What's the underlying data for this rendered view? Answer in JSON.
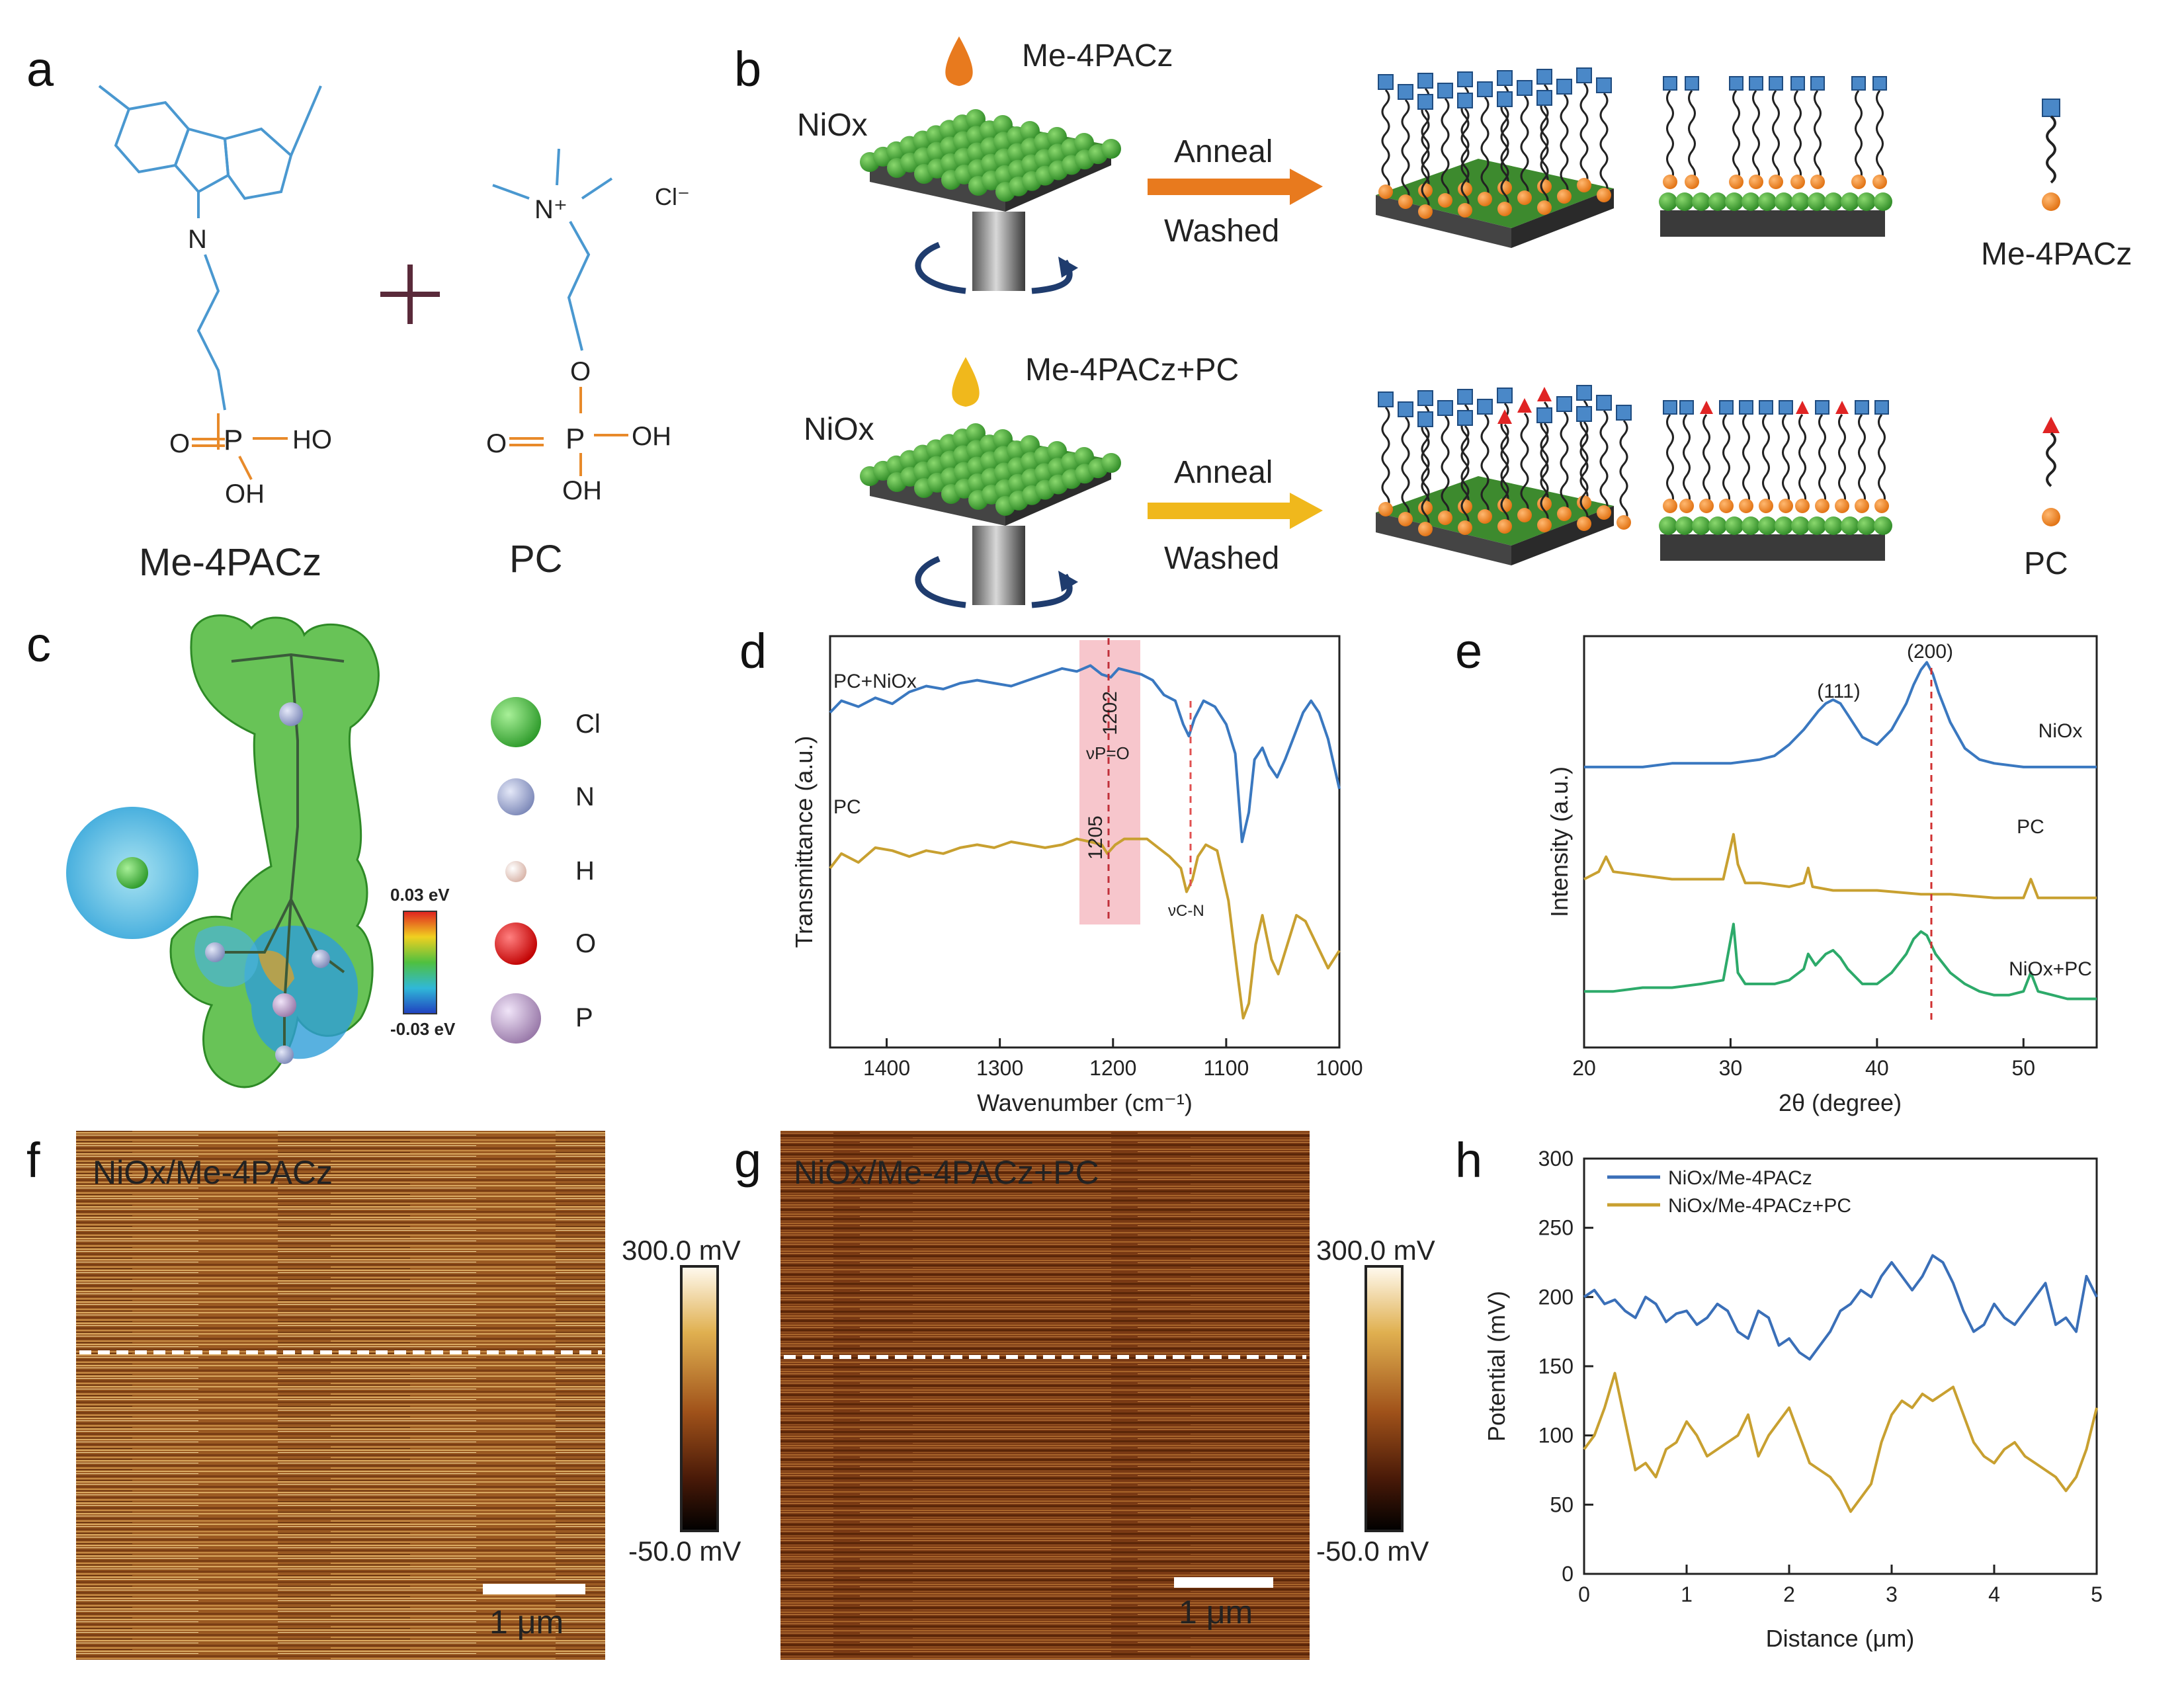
{
  "panels": {
    "a": {
      "label": "a",
      "molecule1_name": "Me-4PACz",
      "molecule2_name": "PC",
      "atoms": {
        "N": "N",
        "N_plus": "N⁺",
        "cl_minus": "Cl⁻",
        "O": "O",
        "HO": "HO",
        "OH1": "OH",
        "OH2": "OH",
        "O_dbl": "O",
        "P": "P"
      }
    },
    "b": {
      "label": "b",
      "top_drop_label": "Me-4PACz",
      "top_substrate_label": "NiOx",
      "top_arrow_top": "Anneal",
      "top_arrow_bottom": "Washed",
      "top_legend": "Me-4PACz",
      "bottom_drop_label": "Me-4PACz+PC",
      "bottom_substrate_label": "NiOx",
      "bottom_arrow_top": "Anneal",
      "bottom_arrow_bottom": "Washed",
      "bottom_legend": "PC",
      "colors": {
        "orange_drop": "#e87a1e",
        "yellow_drop": "#f0b81c",
        "head_blue": "#4a88c8",
        "green_np": "#4fae3c",
        "pc_red": "#e02424"
      }
    },
    "c": {
      "label": "c",
      "legend": [
        "Cl",
        "N",
        "H",
        "O",
        "P"
      ],
      "legend_colors": [
        "#3fb13c",
        "#9aa6c9",
        "#f2d8cf",
        "#e01e1e",
        "#b59ac2"
      ],
      "scale_max": "0.03 eV",
      "scale_min": "-0.03 eV"
    },
    "f": {
      "label": "f",
      "title": "NiOx/Me-4PACz",
      "scale_max": "300.0 mV",
      "scale_min": "-50.0 mV",
      "scalebar": "1 μm"
    },
    "g": {
      "label": "g",
      "title": "NiOx/Me-4PACz+PC",
      "scale_max": "300.0 mV",
      "scale_min": "-50.0 mV",
      "scalebar": "1 μm"
    }
  },
  "chart_data": [
    {
      "panel": "d",
      "label": "d",
      "type": "line",
      "xlabel": "Wavenumber (cm⁻¹)",
      "ylabel": "Transmittance (a.u.)",
      "xlim": [
        1450,
        1000
      ],
      "xticks": [
        1400,
        1300,
        1200,
        1100,
        1000
      ],
      "grid": false,
      "annotations": [
        "1202",
        "1205",
        "νP=O",
        "νC-N"
      ],
      "series": [
        {
          "name": "PC+NiOx",
          "color": "#3a78c0",
          "x": [
            1450,
            1440,
            1425,
            1410,
            1395,
            1380,
            1365,
            1350,
            1335,
            1320,
            1305,
            1290,
            1275,
            1260,
            1245,
            1232,
            1220,
            1210,
            1202,
            1195,
            1185,
            1175,
            1165,
            1155,
            1145,
            1138,
            1133,
            1128,
            1120,
            1110,
            1100,
            1092,
            1086,
            1080,
            1075,
            1068,
            1062,
            1055,
            1048,
            1040,
            1032,
            1025,
            1018,
            1010,
            1000
          ],
          "y": [
            0.84,
            0.88,
            0.86,
            0.89,
            0.87,
            0.91,
            0.93,
            0.92,
            0.94,
            0.95,
            0.94,
            0.93,
            0.95,
            0.97,
            0.99,
            0.98,
            1.0,
            0.97,
            0.96,
            0.99,
            0.98,
            0.97,
            0.95,
            0.9,
            0.88,
            0.8,
            0.76,
            0.82,
            0.88,
            0.86,
            0.8,
            0.7,
            0.4,
            0.5,
            0.68,
            0.72,
            0.66,
            0.62,
            0.68,
            0.76,
            0.84,
            0.88,
            0.84,
            0.75,
            0.58
          ]
        },
        {
          "name": "PC",
          "color": "#c8a030",
          "x": [
            1450,
            1440,
            1425,
            1410,
            1395,
            1380,
            1365,
            1350,
            1335,
            1320,
            1305,
            1290,
            1275,
            1260,
            1245,
            1232,
            1220,
            1210,
            1205,
            1198,
            1190,
            1180,
            1170,
            1160,
            1150,
            1140,
            1135,
            1130,
            1125,
            1118,
            1108,
            1098,
            1090,
            1085,
            1080,
            1074,
            1068,
            1060,
            1054,
            1046,
            1038,
            1030,
            1020,
            1010,
            1000
          ],
          "y": [
            0.56,
            0.61,
            0.58,
            0.63,
            0.62,
            0.6,
            0.62,
            0.61,
            0.63,
            0.64,
            0.63,
            0.65,
            0.64,
            0.63,
            0.64,
            0.66,
            0.65,
            0.64,
            0.61,
            0.64,
            0.66,
            0.66,
            0.66,
            0.63,
            0.6,
            0.56,
            0.48,
            0.52,
            0.6,
            0.64,
            0.62,
            0.45,
            0.2,
            0.05,
            0.1,
            0.3,
            0.4,
            0.25,
            0.2,
            0.3,
            0.4,
            0.38,
            0.3,
            0.22,
            0.28
          ]
        }
      ]
    },
    {
      "panel": "e",
      "label": "e",
      "type": "line",
      "xlabel": "2θ (degree)",
      "ylabel": "Intensity (a.u.)",
      "xlim": [
        20,
        55
      ],
      "xticks": [
        20,
        30,
        40,
        50
      ],
      "grid": false,
      "annotations": [
        "(111)",
        "(200)"
      ],
      "series": [
        {
          "name": "NiOx",
          "color": "#3a78c0",
          "x": [
            20,
            22,
            24,
            26,
            28,
            30,
            32,
            33,
            34,
            35,
            36,
            36.5,
            37,
            37.5,
            38,
            39,
            40,
            41,
            42,
            42.5,
            43,
            43.4,
            43.8,
            44.2,
            45,
            46,
            47,
            48,
            50,
            52,
            55
          ],
          "y": [
            0.8,
            0.8,
            0.8,
            0.81,
            0.81,
            0.81,
            0.82,
            0.83,
            0.86,
            0.9,
            0.95,
            0.97,
            0.98,
            0.97,
            0.94,
            0.88,
            0.86,
            0.9,
            0.97,
            1.02,
            1.06,
            1.08,
            1.05,
            1.0,
            0.92,
            0.85,
            0.82,
            0.81,
            0.8,
            0.8,
            0.8
          ]
        },
        {
          "name": "PC",
          "color": "#c8a030",
          "x": [
            20,
            21,
            21.5,
            22,
            24,
            26,
            28,
            29.5,
            30.2,
            30.5,
            31,
            32,
            34,
            35,
            35.3,
            35.6,
            37,
            40,
            43,
            45,
            48,
            50,
            50.5,
            51,
            53,
            55
          ],
          "y": [
            0.5,
            0.52,
            0.56,
            0.52,
            0.51,
            0.5,
            0.5,
            0.5,
            0.62,
            0.54,
            0.49,
            0.49,
            0.48,
            0.49,
            0.53,
            0.48,
            0.47,
            0.47,
            0.46,
            0.46,
            0.45,
            0.45,
            0.5,
            0.45,
            0.45,
            0.45
          ]
        },
        {
          "name": "NiOx+PC",
          "color": "#2daa6a",
          "x": [
            20,
            22,
            24,
            26,
            28,
            29.5,
            30.2,
            30.5,
            31,
            32,
            33,
            34,
            35,
            35.3,
            35.8,
            36.5,
            37,
            37.5,
            38,
            39,
            40,
            41,
            42,
            42.5,
            43,
            43.4,
            44,
            45,
            46,
            47,
            48,
            49,
            50,
            50.5,
            51,
            52,
            53,
            55
          ],
          "y": [
            0.2,
            0.2,
            0.21,
            0.21,
            0.22,
            0.23,
            0.38,
            0.25,
            0.22,
            0.22,
            0.22,
            0.23,
            0.26,
            0.3,
            0.27,
            0.3,
            0.31,
            0.29,
            0.26,
            0.22,
            0.22,
            0.25,
            0.3,
            0.34,
            0.36,
            0.35,
            0.3,
            0.25,
            0.22,
            0.2,
            0.19,
            0.19,
            0.2,
            0.25,
            0.2,
            0.19,
            0.18,
            0.18
          ]
        }
      ]
    },
    {
      "panel": "h",
      "label": "h",
      "type": "line",
      "xlabel": "Distance (μm)",
      "ylabel": "Potential (mV)",
      "xlim": [
        0,
        5
      ],
      "ylim": [
        0,
        300
      ],
      "xticks": [
        0,
        1,
        2,
        3,
        4,
        5
      ],
      "yticks": [
        0,
        50,
        100,
        150,
        200,
        250,
        300
      ],
      "grid": false,
      "legend_position": "top-left",
      "series": [
        {
          "name": "NiOx/Me-4PACz",
          "color": "#3a6fb8",
          "x": [
            0,
            0.1,
            0.2,
            0.3,
            0.4,
            0.5,
            0.6,
            0.7,
            0.8,
            0.9,
            1.0,
            1.1,
            1.2,
            1.3,
            1.4,
            1.5,
            1.6,
            1.7,
            1.8,
            1.9,
            2.0,
            2.1,
            2.2,
            2.3,
            2.4,
            2.5,
            2.6,
            2.7,
            2.8,
            2.9,
            3.0,
            3.1,
            3.2,
            3.3,
            3.4,
            3.5,
            3.6,
            3.7,
            3.8,
            3.9,
            4.0,
            4.1,
            4.2,
            4.3,
            4.4,
            4.5,
            4.6,
            4.7,
            4.8,
            4.9,
            5.0
          ],
          "y": [
            200,
            205,
            195,
            198,
            190,
            185,
            200,
            195,
            182,
            188,
            190,
            180,
            185,
            195,
            190,
            175,
            170,
            190,
            185,
            165,
            170,
            160,
            155,
            165,
            175,
            190,
            195,
            205,
            200,
            215,
            225,
            215,
            205,
            215,
            230,
            225,
            210,
            190,
            175,
            180,
            195,
            185,
            180,
            190,
            200,
            210,
            180,
            185,
            175,
            215,
            200
          ]
        },
        {
          "name": "NiOx/Me-4PACz+PC",
          "color": "#c8a030",
          "x": [
            0,
            0.1,
            0.2,
            0.3,
            0.4,
            0.5,
            0.6,
            0.7,
            0.8,
            0.9,
            1.0,
            1.1,
            1.2,
            1.3,
            1.4,
            1.5,
            1.6,
            1.7,
            1.8,
            1.9,
            2.0,
            2.1,
            2.2,
            2.3,
            2.4,
            2.5,
            2.6,
            2.7,
            2.8,
            2.9,
            3.0,
            3.1,
            3.2,
            3.3,
            3.4,
            3.5,
            3.6,
            3.7,
            3.8,
            3.9,
            4.0,
            4.1,
            4.2,
            4.3,
            4.4,
            4.5,
            4.6,
            4.7,
            4.8,
            4.9,
            5.0
          ],
          "y": [
            90,
            100,
            120,
            145,
            110,
            75,
            80,
            70,
            90,
            95,
            110,
            100,
            85,
            90,
            95,
            100,
            115,
            85,
            100,
            110,
            120,
            100,
            80,
            75,
            70,
            60,
            45,
            55,
            65,
            95,
            115,
            125,
            120,
            130,
            125,
            130,
            135,
            115,
            95,
            85,
            80,
            90,
            95,
            85,
            80,
            75,
            70,
            60,
            70,
            90,
            120
          ]
        }
      ]
    }
  ]
}
